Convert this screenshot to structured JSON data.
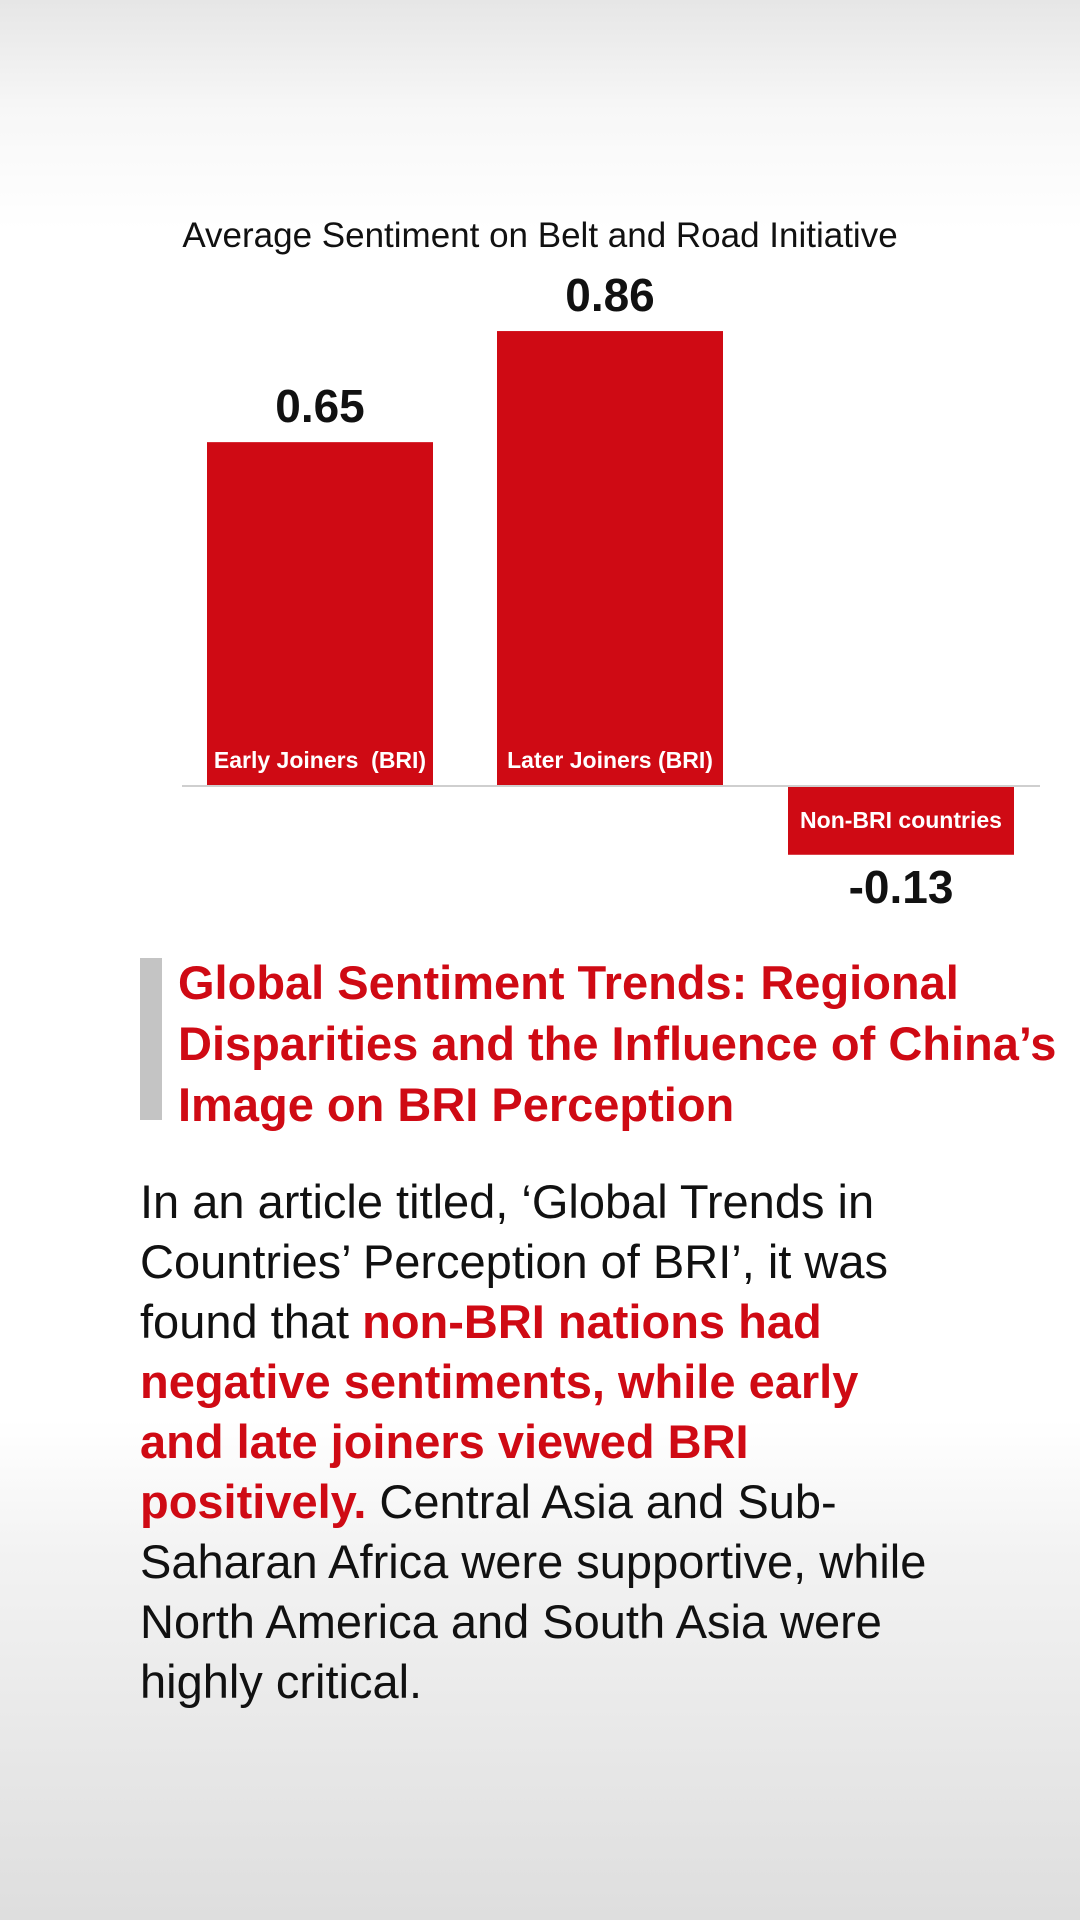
{
  "chart_data": {
    "type": "bar",
    "title": "Average Sentiment on Belt and Road Initiative",
    "categories": [
      "Early Joiners  (BRI)",
      "Later Joiners (BRI)",
      "Non-BRI countries"
    ],
    "values": [
      0.65,
      0.86,
      -0.13
    ],
    "value_labels": [
      "0.65",
      "0.86",
      "-0.13"
    ],
    "xlabel": "",
    "ylabel": "",
    "ylim": [
      -0.13,
      0.86
    ],
    "grid": false,
    "legend": "none",
    "bar_color": "#cf0a14",
    "label_color": "#ffffff"
  },
  "article": {
    "headline": "Global Sentiment Trends: Regional Disparities and the Influence of China’s Image on BRI Perception",
    "body_intro": "In an article titled, ‘Global Trends in Countries’ Perception of BRI’, it was found that ",
    "body_highlight": "non-BRI nations had negative sentiments, while early and late joiners viewed BRI positively.",
    "body_rest": " Central Asia and Sub-Saharan Africa were supportive, while North America and South Asia were highly critical."
  },
  "colors": {
    "accent": "#cf0a14",
    "quote_bar": "#c4c4c4",
    "text": "#111111"
  }
}
